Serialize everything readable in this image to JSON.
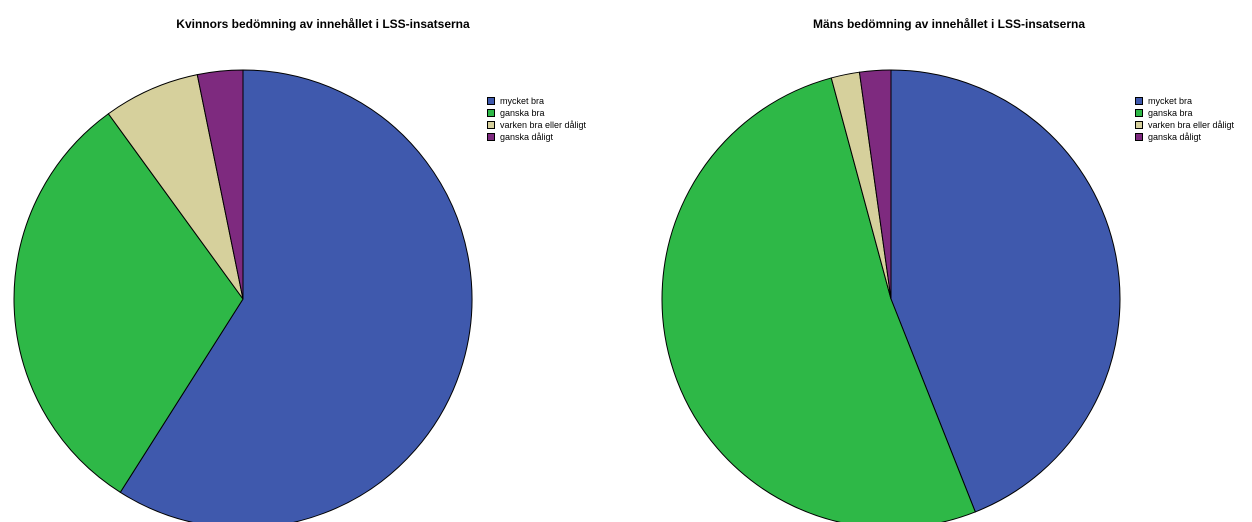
{
  "chart_data": [
    {
      "type": "pie",
      "title": "Kvinnors bedömning av innehållet i LSS-insatserna",
      "slices": [
        {
          "label": "mycket bra",
          "value": 59.0,
          "color": "#3F59AD"
        },
        {
          "label": "ganska bra",
          "value": 31.0,
          "color": "#2EB847"
        },
        {
          "label": "varken bra eller dåligt",
          "value": 6.8,
          "color": "#D6D09C"
        },
        {
          "label": "ganska dåligt",
          "value": 3.2,
          "color": "#7E2A7F"
        }
      ],
      "legend_position": "top-right"
    },
    {
      "type": "pie",
      "title": "Mäns bedömning av innehållet i LSS-insatserna",
      "slices": [
        {
          "label": "mycket bra",
          "value": 44.0,
          "color": "#3F59AD"
        },
        {
          "label": "ganska bra",
          "value": 51.8,
          "color": "#2EB847"
        },
        {
          "label": "varken bra eller dåligt",
          "value": 2.0,
          "color": "#D6D09C"
        },
        {
          "label": "ganska dåligt",
          "value": 2.2,
          "color": "#7E2A7F"
        }
      ],
      "legend_position": "top-right"
    }
  ]
}
